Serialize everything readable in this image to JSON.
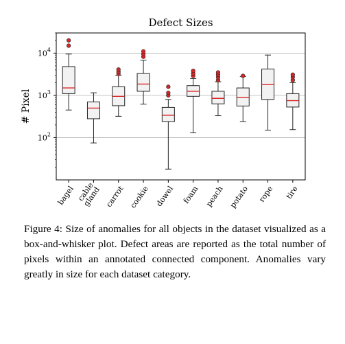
{
  "chart_data": {
    "type": "box",
    "title": "Defect Sizes",
    "ylabel": "# Pixel",
    "xlabel": "",
    "yscale": "log",
    "ylim": [
      10,
      30000
    ],
    "ytick_values": [
      100,
      1000,
      10000
    ],
    "ytick_labels": [
      {
        "base": "10",
        "exp": "2"
      },
      {
        "base": "10",
        "exp": "3"
      },
      {
        "base": "10",
        "exp": "4"
      }
    ],
    "grid": "horizontal",
    "colors": {
      "median": "#d62728",
      "box_fill": "#f2f2f2",
      "outlier": "#d62728",
      "outlier_edge": "#222222",
      "grid": "#b0b0b0"
    },
    "categories": [
      {
        "label": [
          "bagel"
        ],
        "whisker_low": 450,
        "q1": 1100,
        "median": 1500,
        "q3": 4800,
        "whisker_high": 9500,
        "outliers": [
          15000,
          20000
        ]
      },
      {
        "label": [
          "cable",
          "gland"
        ],
        "whisker_low": 75,
        "q1": 280,
        "median": 500,
        "q3": 700,
        "whisker_high": 1150,
        "outliers": []
      },
      {
        "label": [
          "carrot"
        ],
        "whisker_low": 320,
        "q1": 570,
        "median": 950,
        "q3": 1600,
        "whisker_high": 3000,
        "outliers": [
          3200,
          3600,
          4100
        ]
      },
      {
        "label": [
          "cookie"
        ],
        "whisker_low": 620,
        "q1": 1250,
        "median": 1850,
        "q3": 3300,
        "whisker_high": 6800,
        "outliers": [
          8200,
          9500,
          11000
        ]
      },
      {
        "label": [
          "dowel"
        ],
        "whisker_low": 18,
        "q1": 240,
        "median": 340,
        "q3": 520,
        "whisker_high": 800,
        "outliers": [
          1000,
          1150,
          1600
        ]
      },
      {
        "label": [
          "foam"
        ],
        "whisker_low": 130,
        "q1": 950,
        "median": 1250,
        "q3": 1700,
        "whisker_high": 2500,
        "outliers": [
          2900,
          3300,
          3800
        ]
      },
      {
        "label": [
          "peach"
        ],
        "whisker_low": 330,
        "q1": 630,
        "median": 850,
        "q3": 1250,
        "whisker_high": 2100,
        "outliers": [
          2300,
          2700,
          3100,
          3500
        ]
      },
      {
        "label": [
          "potato"
        ],
        "whisker_low": 240,
        "q1": 560,
        "median": 900,
        "q3": 1500,
        "whisker_high": 2800,
        "outliers": [
          2900
        ]
      },
      {
        "label": [
          "rope"
        ],
        "whisker_low": 150,
        "q1": 800,
        "median": 1800,
        "q3": 4200,
        "whisker_high": 9000,
        "outliers": []
      },
      {
        "label": [
          "tire"
        ],
        "whisker_low": 155,
        "q1": 530,
        "median": 750,
        "q3": 1100,
        "whisker_high": 2000,
        "outliers": [
          2300,
          2700,
          3100
        ]
      }
    ]
  },
  "caption": "Figure 4: Size of anomalies for all objects in the dataset visualized as a box-and-whisker plot. Defect areas are reported as the total number of pixels within an annotated connected component. Anomalies vary greatly in size for each dataset category."
}
